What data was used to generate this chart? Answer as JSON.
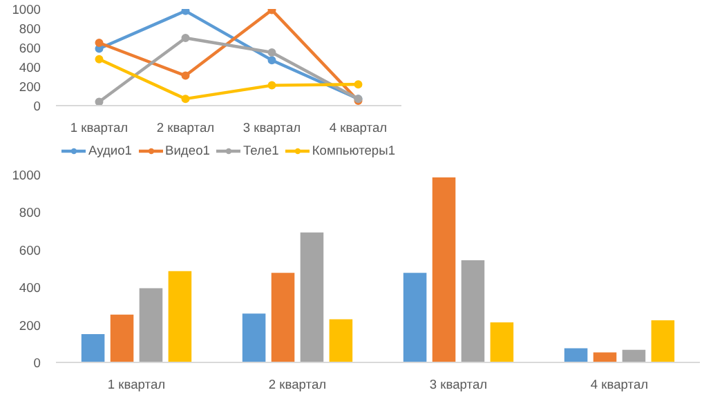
{
  "chart_data": [
    {
      "type": "line",
      "categories": [
        "1 квартал",
        "2 квартал",
        "3 квартал",
        "4 квартал"
      ],
      "ylim": [
        0,
        1000
      ],
      "yticks": [
        0,
        200,
        400,
        600,
        800,
        1000
      ],
      "grid": false,
      "legend": "bottom",
      "marker": "circle",
      "series": [
        {
          "name": "Аудио1",
          "color": "#5b9bd5",
          "values": [
            590,
            980,
            470,
            70
          ]
        },
        {
          "name": "Видео1",
          "color": "#ed7d31",
          "values": [
            650,
            310,
            990,
            50
          ]
        },
        {
          "name": "Теле1",
          "color": "#a5a5a5",
          "values": [
            40,
            700,
            550,
            70
          ]
        },
        {
          "name": "Компьютеры1",
          "color": "#ffc000",
          "values": [
            480,
            70,
            210,
            220
          ]
        }
      ]
    },
    {
      "type": "bar",
      "categories": [
        "1 квартал",
        "2 квартал",
        "3 квартал",
        "4 квартал"
      ],
      "ylim": [
        0,
        1000
      ],
      "yticks": [
        0,
        200,
        400,
        600,
        800,
        1000
      ],
      "grid": false,
      "series": [
        {
          "color": "#5b9bd5",
          "values": [
            151,
            260,
            477,
            75
          ]
        },
        {
          "color": "#ed7d31",
          "values": [
            255,
            477,
            985,
            53
          ]
        },
        {
          "color": "#a5a5a5",
          "values": [
            395,
            692,
            544,
            67
          ]
        },
        {
          "color": "#ffc000",
          "values": [
            486,
            230,
            213,
            224
          ]
        }
      ]
    }
  ]
}
